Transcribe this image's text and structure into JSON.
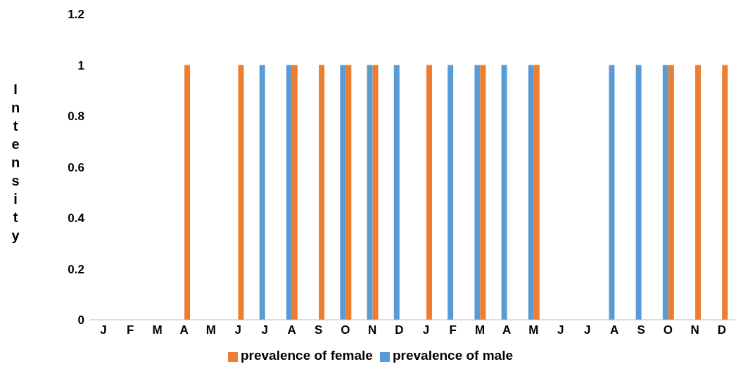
{
  "chart_data": {
    "type": "bar",
    "ylabel": "Intensity",
    "categories": [
      "J",
      "F",
      "M",
      "A",
      "M",
      "J",
      "J",
      "A",
      "S",
      "O",
      "N",
      "D",
      "J",
      "F",
      "M",
      "A",
      "M",
      "J",
      "J",
      "A",
      "S",
      "O",
      "N",
      "D"
    ],
    "series": [
      {
        "name": "prevalence of male",
        "color": "#5b9bd5",
        "values": [
          0,
          0,
          0,
          0,
          0,
          0,
          1,
          1,
          0,
          1,
          1,
          1,
          0,
          1,
          1,
          1,
          1,
          0,
          0,
          1,
          1,
          1,
          0,
          0
        ]
      },
      {
        "name": "prevalence of female",
        "color": "#ed7d31",
        "values": [
          0,
          0,
          0,
          1,
          0,
          1,
          0,
          1,
          1,
          1,
          1,
          0,
          1,
          0,
          1,
          0,
          1,
          0,
          0,
          0,
          0,
          1,
          1,
          1
        ]
      }
    ],
    "ylim": [
      0,
      1.2
    ],
    "yticks": [
      0,
      0.2,
      0.4,
      0.6,
      0.8,
      1,
      1.2
    ],
    "grid": false,
    "legend": "bottom"
  }
}
